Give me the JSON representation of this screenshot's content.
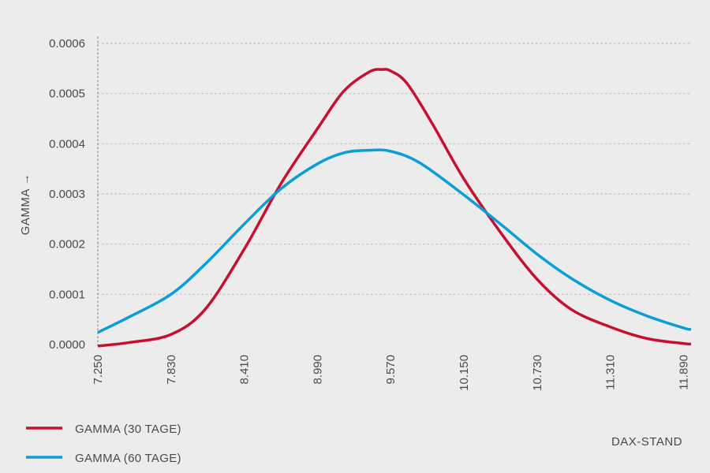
{
  "chart_data": {
    "type": "line",
    "xlabel": "DAX-STAND",
    "ylabel": "GAMMA →",
    "xlim": [
      7250,
      11950
    ],
    "ylim": [
      0,
      0.0006
    ],
    "x_ticks": [
      "7.250",
      "7.830",
      "8.410",
      "8.990",
      "9.570",
      "10.150",
      "10.730",
      "11.310",
      "11.890"
    ],
    "y_ticks": [
      "0.0000",
      "0.0001",
      "0.0002",
      "0.0003",
      "0.0004",
      "0.0005",
      "0.0006"
    ],
    "grid": "horizontal-dotted",
    "legend_position": "bottom-left",
    "series": [
      {
        "name": "GAMMA (30 TAGE)",
        "color": "#c8102e",
        "x": [
          7250,
          7500,
          7830,
          8100,
          8410,
          8700,
          8990,
          9200,
          9400,
          9500,
          9570,
          9700,
          9900,
          10150,
          10450,
          10730,
          11000,
          11310,
          11600,
          11890,
          11950
        ],
        "values": [
          -3e-06,
          4e-06,
          2e-05,
          7e-05,
          0.00019,
          0.00032,
          0.00043,
          0.000505,
          0.000543,
          0.000548,
          0.000545,
          0.00052,
          0.00044,
          0.00033,
          0.00022,
          0.00013,
          7e-05,
          3.5e-05,
          1.2e-05,
          2e-06,
          1e-06
        ]
      },
      {
        "name": "GAMMA (60 TAGE)",
        "color": "#0a9ed9",
        "x": [
          7250,
          7500,
          7830,
          8100,
          8410,
          8700,
          8990,
          9200,
          9400,
          9570,
          9800,
          10150,
          10450,
          10730,
          11000,
          11310,
          11600,
          11890,
          11950
        ],
        "values": [
          2.4e-05,
          5.5e-05,
          0.0001,
          0.00016,
          0.00024,
          0.00031,
          0.00036,
          0.000382,
          0.000387,
          0.000385,
          0.000362,
          0.000298,
          0.000238,
          0.00018,
          0.000132,
          8.8e-05,
          5.7e-05,
          3.3e-05,
          3e-05
        ]
      }
    ]
  }
}
